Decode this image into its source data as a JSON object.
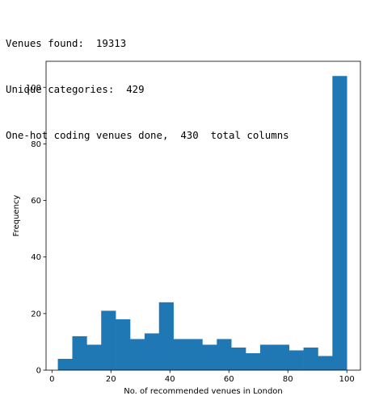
{
  "console_output": [
    "Venues found:  19313",
    "Unique categories:  429",
    "One-hot coding venues done,  430  total columns"
  ],
  "chart_data": {
    "type": "bar",
    "title": "",
    "xlabel": "No. of recommended venues in London",
    "ylabel": "Frequency",
    "xlim": [
      -2,
      104.6
    ],
    "ylim": [
      0,
      109.2
    ],
    "xticks": [
      0,
      20,
      40,
      60,
      80,
      100
    ],
    "yticks": [
      0,
      20,
      40,
      60,
      80,
      100
    ],
    "bin_edges": [
      2,
      6.9,
      11.8,
      16.7,
      21.6,
      26.5,
      31.4,
      36.3,
      41.2,
      46.1,
      51,
      55.9,
      60.8,
      65.7,
      70.6,
      75.5,
      80.4,
      85.3,
      90.2,
      95.1,
      100
    ],
    "values": [
      4,
      12,
      9,
      21,
      18,
      11,
      13,
      24,
      11,
      11,
      9,
      11,
      8,
      6,
      9,
      9,
      7,
      8,
      5,
      104
    ],
    "color": "#1f77b4",
    "grid": false,
    "legend": "none"
  }
}
